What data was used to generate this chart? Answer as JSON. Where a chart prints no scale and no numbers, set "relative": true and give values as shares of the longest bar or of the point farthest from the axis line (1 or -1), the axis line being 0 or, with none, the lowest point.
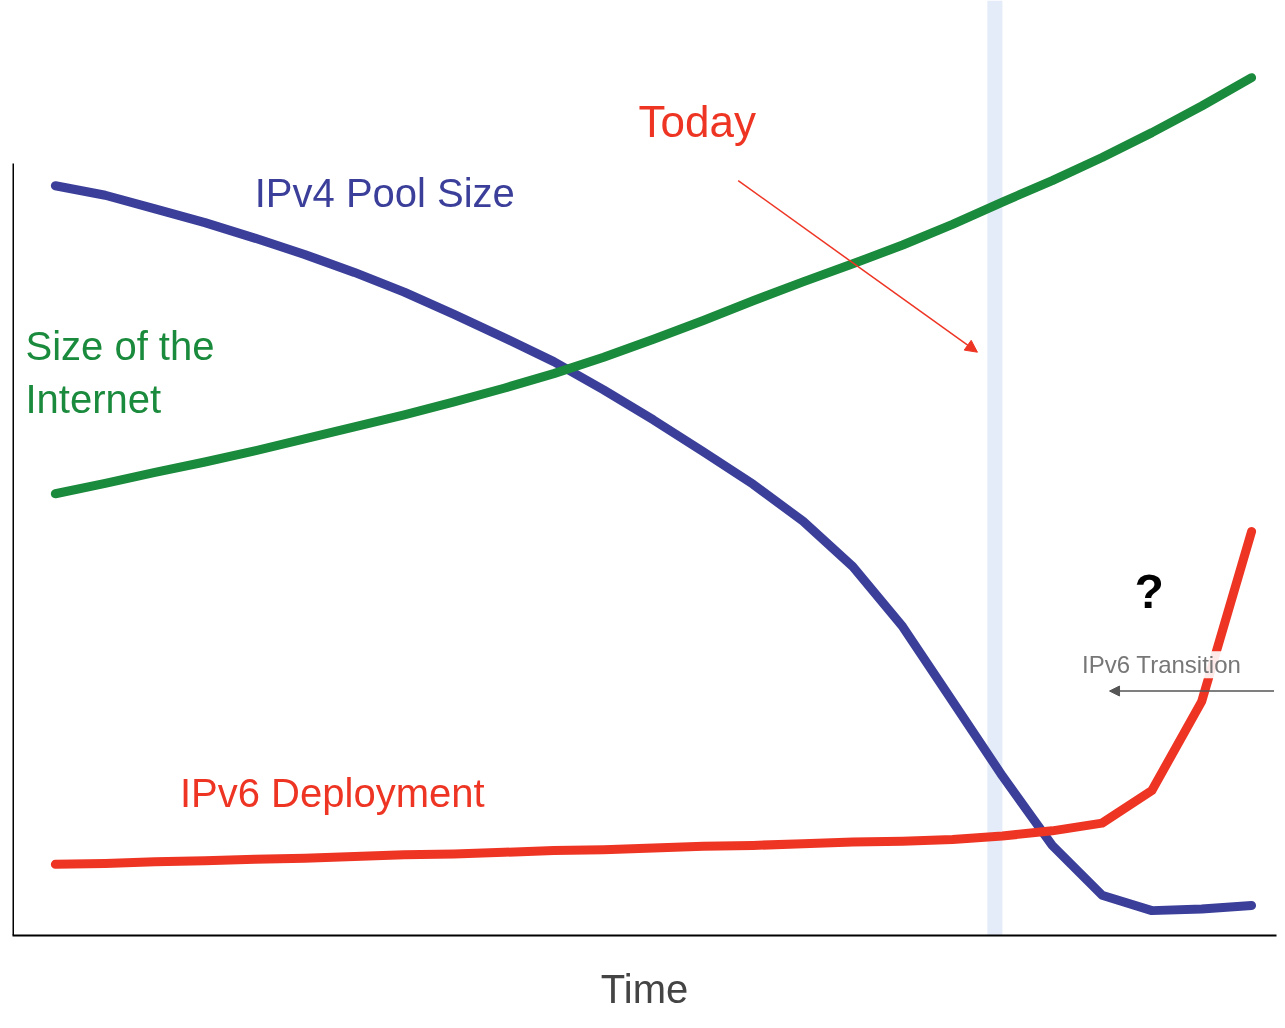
{
  "chart_data": {
    "type": "line",
    "relative": true,
    "xlabel": "Time",
    "categories": [
      null,
      null,
      null,
      null,
      null,
      null,
      null,
      null,
      null,
      null,
      null,
      null,
      null,
      null,
      null,
      null,
      null,
      null,
      null,
      null,
      null,
      null,
      null,
      null,
      null
    ],
    "series": [
      {
        "name": "IPv4 Pool Size",
        "color": "#3b3f9a",
        "values": [
          0.874,
          0.863,
          0.847,
          0.831,
          0.813,
          0.794,
          0.773,
          0.75,
          0.724,
          0.697,
          0.669,
          0.636,
          0.601,
          0.564,
          0.526,
          0.483,
          0.43,
          0.36,
          0.273,
          0.186,
          0.105,
          0.047,
          0.029,
          0.031,
          0.035
        ]
      },
      {
        "name": "Size of the Internet",
        "color": "#1a8a3c",
        "values": [
          0.515,
          0.527,
          0.54,
          0.552,
          0.565,
          0.579,
          0.593,
          0.607,
          0.622,
          0.638,
          0.655,
          0.674,
          0.695,
          0.717,
          0.74,
          0.762,
          0.783,
          0.805,
          0.829,
          0.855,
          0.88,
          0.907,
          0.936,
          0.967,
          1.0
        ]
      },
      {
        "name": "IPv6 Deployment",
        "color": "#ee3524",
        "values": [
          0.083,
          0.084,
          0.086,
          0.087,
          0.089,
          0.09,
          0.092,
          0.094,
          0.095,
          0.097,
          0.099,
          0.1,
          0.102,
          0.104,
          0.105,
          0.107,
          0.109,
          0.11,
          0.112,
          0.116,
          0.122,
          0.131,
          0.169,
          0.273,
          0.471
        ]
      }
    ],
    "annotations": [
      "?",
      "IPv6 Transition",
      "Today"
    ],
    "grid": false,
    "marker": "none",
    "line_style": "solid"
  }
}
